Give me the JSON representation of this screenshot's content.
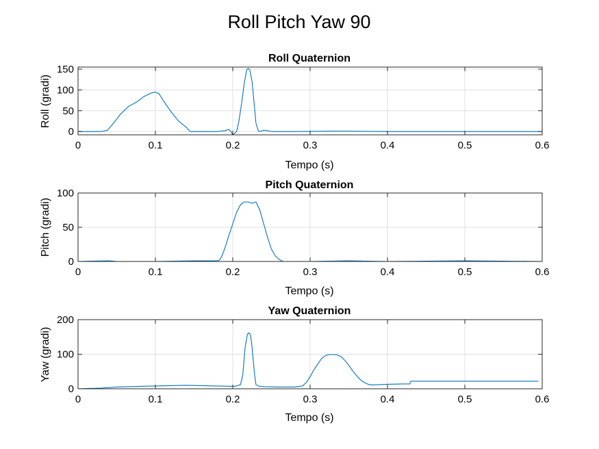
{
  "figure": {
    "suptitle": "Roll Pitch Yaw 90",
    "line_color": "#0072BD",
    "grid_color": "#dfdfdf"
  },
  "chart_data": [
    {
      "type": "line",
      "title": "Roll Quaternion",
      "xlabel": "Tempo (s)",
      "ylabel": "Roll (gradi)",
      "xlim": [
        0,
        0.6
      ],
      "ylim": [
        -8,
        155
      ],
      "xticks": [
        0,
        0.1,
        0.2,
        0.3,
        0.4,
        0.5,
        0.6
      ],
      "xtick_labels": [
        "0",
        "0.1",
        "0.2",
        "0.3",
        "0.4",
        "0.5",
        "0.6"
      ],
      "yticks": [
        0,
        50,
        100,
        150
      ],
      "ytick_labels": [
        "0",
        "50",
        "100",
        "150"
      ],
      "grid": true,
      "series": [
        {
          "x": [
            0,
            0.03,
            0.038,
            0.045,
            0.055,
            0.065,
            0.075,
            0.085,
            0.095,
            0.1,
            0.105,
            0.11,
            0.12,
            0.13,
            0.14,
            0.145,
            0.18,
            0.19,
            0.195,
            0.198,
            0.2,
            0.205,
            0.208,
            0.212,
            0.215,
            0.218,
            0.22,
            0.222,
            0.225,
            0.228,
            0.23,
            0.233,
            0.235,
            0.24,
            0.245,
            0.25,
            0.28,
            0.33,
            0.4,
            0.5,
            0.6
          ],
          "y": [
            0,
            0,
            3,
            18,
            42,
            60,
            70,
            84,
            93,
            95,
            90,
            75,
            48,
            25,
            10,
            0,
            0,
            2,
            5,
            -1,
            -8,
            0,
            25,
            75,
            118,
            148,
            152,
            148,
            120,
            60,
            20,
            2,
            0,
            3,
            2,
            0,
            0,
            1,
            0,
            0,
            0
          ]
        }
      ]
    },
    {
      "type": "line",
      "title": "Pitch Quaternion",
      "xlabel": "Tempo (s)",
      "ylabel": "Pitch (gradi)",
      "xlim": [
        0,
        0.6
      ],
      "ylim": [
        0,
        100
      ],
      "xticks": [
        0,
        0.1,
        0.2,
        0.3,
        0.4,
        0.5,
        0.6
      ],
      "xtick_labels": [
        "0",
        "0.1",
        "0.2",
        "0.3",
        "0.4",
        "0.5",
        "0.6"
      ],
      "yticks": [
        0,
        50,
        100
      ],
      "ytick_labels": [
        "0",
        "50",
        "100"
      ],
      "grid": true,
      "series": [
        {
          "x": [
            0,
            0.04,
            0.05,
            0.1,
            0.15,
            0.18,
            0.183,
            0.186,
            0.19,
            0.195,
            0.2,
            0.205,
            0.21,
            0.215,
            0.22,
            0.225,
            0.23,
            0.235,
            0.24,
            0.245,
            0.25,
            0.255,
            0.26,
            0.265,
            0.3,
            0.35,
            0.4,
            0.5,
            0.6
          ],
          "y": [
            0,
            1,
            0,
            0,
            1,
            1,
            2,
            8,
            20,
            38,
            55,
            72,
            83,
            87,
            87,
            85,
            87,
            75,
            55,
            35,
            18,
            8,
            3,
            0,
            0,
            1,
            0,
            1,
            0
          ]
        }
      ]
    },
    {
      "type": "line",
      "title": "Yaw Quaternion",
      "xlabel": "Tempo (s)",
      "ylabel": "Yaw (gradi)",
      "xlim": [
        0,
        0.6
      ],
      "ylim": [
        0,
        200
      ],
      "xticks": [
        0,
        0.1,
        0.2,
        0.3,
        0.4,
        0.5,
        0.6
      ],
      "xtick_labels": [
        "0",
        "0.1",
        "0.2",
        "0.3",
        "0.4",
        "0.5",
        "0.6"
      ],
      "yticks": [
        0,
        100,
        200
      ],
      "ytick_labels": [
        "0",
        "100",
        "200"
      ],
      "grid": true,
      "series": [
        {
          "x": [
            0,
            0.03,
            0.05,
            0.08,
            0.1,
            0.14,
            0.18,
            0.2,
            0.205,
            0.21,
            0.213,
            0.216,
            0.219,
            0.221,
            0.223,
            0.225,
            0.228,
            0.23,
            0.233,
            0.236,
            0.24,
            0.26,
            0.28,
            0.29,
            0.295,
            0.3,
            0.305,
            0.31,
            0.315,
            0.32,
            0.325,
            0.33,
            0.335,
            0.34,
            0.345,
            0.35,
            0.355,
            0.36,
            0.365,
            0.37,
            0.375,
            0.38,
            0.39,
            0.4,
            0.42,
            0.429,
            0.43,
            0.5,
            0.595
          ],
          "y": [
            0,
            2,
            5,
            7,
            8,
            10,
            8,
            7,
            8,
            12,
            40,
            120,
            158,
            162,
            155,
            120,
            45,
            12,
            8,
            7,
            6,
            5,
            5,
            8,
            18,
            35,
            55,
            72,
            88,
            96,
            99,
            99,
            98,
            93,
            82,
            68,
            52,
            38,
            26,
            18,
            13,
            11,
            12,
            13,
            14,
            14,
            22,
            22,
            22
          ]
        }
      ]
    }
  ]
}
